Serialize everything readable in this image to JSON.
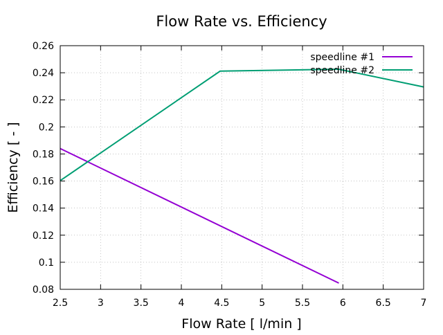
{
  "chart_data": {
    "type": "line",
    "title": "Flow Rate vs. Efficiency",
    "xlabel": "Flow Rate [ l/min ]",
    "ylabel": "Efficiency [ - ]",
    "xlim": [
      2.5,
      7
    ],
    "ylim": [
      0.08,
      0.26
    ],
    "xticks": [
      "2.5",
      "3",
      "3.5",
      "4",
      "4.5",
      "5",
      "5.5",
      "6",
      "6.5",
      "7"
    ],
    "yticks": [
      "0.08",
      "0.1",
      "0.12",
      "0.14",
      "0.16",
      "0.18",
      "0.2",
      "0.22",
      "0.24",
      "0.26"
    ],
    "grid": true,
    "legend_position": "top-right",
    "series": [
      {
        "name": "speedline #1",
        "color": "#9400d3",
        "x": [
          2.5,
          5.95
        ],
        "y": [
          0.184,
          0.0846
        ]
      },
      {
        "name": "speedline #2",
        "color": "#009e73",
        "x": [
          2.5,
          4.48,
          5.95,
          7.0
        ],
        "y": [
          0.1603,
          0.2412,
          0.2426,
          0.2295
        ]
      }
    ]
  }
}
